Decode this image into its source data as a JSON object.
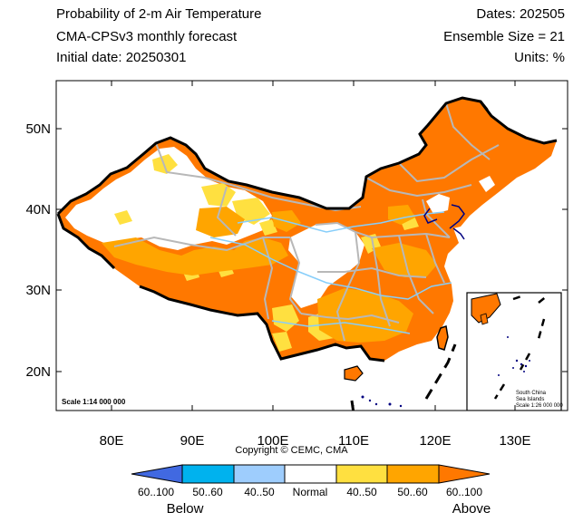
{
  "header": {
    "title": "Probability of 2-m Air Temperature",
    "subtitle": "CMA-CPSv3 monthly forecast",
    "initial_date": "Initial date: 20250301",
    "dates": "Dates: 202505",
    "ensemble": "Ensemble Size = 21",
    "units": "Units: %"
  },
  "axes": {
    "y_ticks": [
      "50N",
      "40N",
      "30N",
      "20N"
    ],
    "x_ticks": [
      "80E",
      "90E",
      "100E",
      "110E",
      "120E",
      "130E"
    ]
  },
  "map_notes": {
    "scale_main": "Scale 1:14 000 000",
    "inset_title_1": "South China",
    "inset_title_2": "Sea Islands",
    "inset_scale": "Scale 1:26 000 000"
  },
  "copyright": "Copyright © CEMC, CMA",
  "colorbar": {
    "labels": [
      "60..100",
      "50..60",
      "40..50",
      "Normal",
      "40..50",
      "50..60",
      "60..100"
    ],
    "below_label": "Below",
    "above_label": "Above",
    "colors": [
      "#4169e1",
      "#00b2ee",
      "#9ecdfd",
      "#ffffff",
      "#ffe040",
      "#ffa500",
      "#ff7800"
    ]
  },
  "colors": {
    "above_60_100": "#ff7800",
    "above_50_60": "#ffa500",
    "above_40_50": "#ffe040",
    "normal": "#ffffff",
    "border": "#000000",
    "province_lines": "#b8b8b8",
    "rivers": "#87cefa"
  }
}
